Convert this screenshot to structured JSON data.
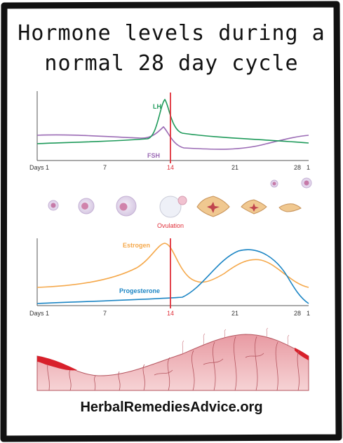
{
  "title": {
    "line1": "Hormone levels during a",
    "line2": "normal 28 day cycle"
  },
  "axis": {
    "prefix": "Days",
    "ticks": [
      "1",
      "7",
      "14",
      "21",
      "28",
      "1"
    ]
  },
  "top_chart": {
    "lh_label": "LH",
    "fsh_label": "FSH",
    "lh_color": "#1e9a5a",
    "fsh_color": "#9b6bb5"
  },
  "ovulation_label": "Ovulation",
  "ovulation_color": "#e0303a",
  "bottom_chart": {
    "estrogen_label": "Estrogen",
    "progesterone_label": "Progesterone",
    "estrogen_color": "#f5a84a",
    "progesterone_color": "#1b85c4"
  },
  "footer": "HerbalRemediesAdvice.org"
}
